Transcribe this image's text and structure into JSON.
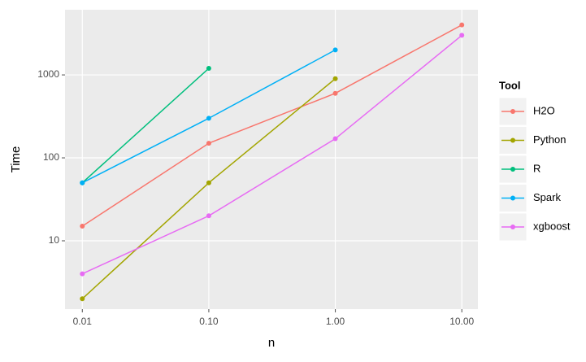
{
  "chart_data": {
    "type": "line",
    "x_label": "n",
    "y_label": "Time",
    "legend_title": "Tool",
    "legend_position": "right",
    "x": [
      0.01,
      0.1,
      1,
      10
    ],
    "series": [
      {
        "name": "H2O",
        "color": "#F8766D",
        "values": [
          15,
          150,
          600,
          4000
        ]
      },
      {
        "name": "Python",
        "color": "#A3A500",
        "values": [
          2,
          50,
          900,
          null
        ]
      },
      {
        "name": "R",
        "color": "#00BF7D",
        "values": [
          50,
          1200,
          null,
          null
        ]
      },
      {
        "name": "Spark",
        "color": "#00B0F6",
        "values": [
          50,
          300,
          2000,
          null
        ]
      },
      {
        "name": "xgboost",
        "color": "#E76BF3",
        "values": [
          4,
          20,
          170,
          3000
        ]
      }
    ],
    "xlog": true,
    "ylog": true,
    "xlim": [
      0.0073,
      13.4
    ],
    "ylim": [
      1.5,
      6100
    ],
    "xticks": [
      0.01,
      {
        "value": 0.1,
        "label": "0.10"
      },
      {
        "value": 1,
        "label": "1.00"
      },
      {
        "value": 10,
        "label": "10.00"
      }
    ],
    "yticks": [
      10,
      100,
      1000
    ],
    "grid": true
  }
}
